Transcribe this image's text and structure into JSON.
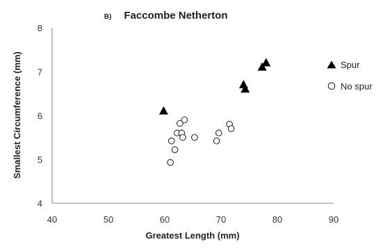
{
  "chart_data": {
    "type": "scatter",
    "panel_label": "B)",
    "title": "Faccombe Netherton",
    "xlabel": "Greatest Length (mm)",
    "ylabel": "Smallest Circumference (mm)",
    "xlim": [
      40,
      90
    ],
    "ylim": [
      4,
      8
    ],
    "xticks": [
      "40",
      "50",
      "60",
      "70",
      "80",
      "90"
    ],
    "yticks": [
      "4",
      "5",
      "6",
      "7",
      "8"
    ],
    "grid": false,
    "legend_position": "right",
    "series": [
      {
        "name": "Spur",
        "marker": "filled-triangle",
        "color": "#000000",
        "points": [
          [
            59.8,
            6.1
          ],
          [
            74.0,
            6.7
          ],
          [
            74.3,
            6.6
          ],
          [
            77.3,
            7.1
          ],
          [
            78.0,
            7.2
          ]
        ]
      },
      {
        "name": "No spur",
        "marker": "open-circle",
        "color": "#000000",
        "points": [
          [
            61.0,
            4.93
          ],
          [
            61.2,
            5.42
          ],
          [
            61.8,
            5.22
          ],
          [
            62.2,
            5.6
          ],
          [
            62.7,
            5.82
          ],
          [
            63.0,
            5.6
          ],
          [
            63.2,
            5.5
          ],
          [
            63.5,
            5.9
          ],
          [
            65.3,
            5.5
          ],
          [
            69.2,
            5.42
          ],
          [
            69.6,
            5.6
          ],
          [
            71.5,
            5.8
          ],
          [
            71.8,
            5.7
          ]
        ]
      }
    ]
  }
}
